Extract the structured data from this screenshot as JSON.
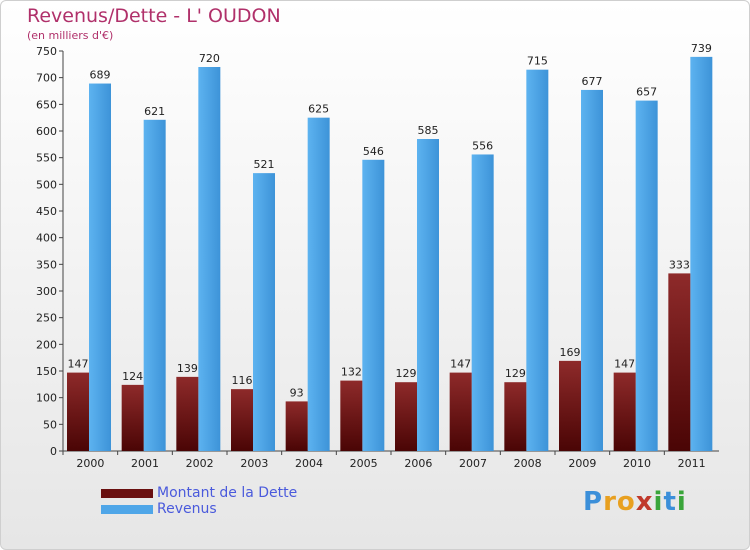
{
  "chart_data": {
    "type": "bar",
    "title": "Revenus/Dette - L' OUDON",
    "subtitle": "(en milliers d'€)",
    "categories": [
      "2000",
      "2001",
      "2002",
      "2003",
      "2004",
      "2005",
      "2006",
      "2007",
      "2008",
      "2009",
      "2010",
      "2011"
    ],
    "series": [
      {
        "name": "Montant de la Dette",
        "values": [
          147,
          124,
          139,
          116,
          93,
          132,
          129,
          147,
          129,
          169,
          147,
          333
        ],
        "color": "#7a1c1c"
      },
      {
        "name": "Revenus",
        "values": [
          689,
          621,
          720,
          521,
          625,
          546,
          585,
          556,
          715,
          677,
          657,
          739
        ],
        "color": "#4fa6e8"
      }
    ],
    "ylim": [
      0,
      750
    ],
    "yticks": [
      0,
      50,
      100,
      150,
      200,
      250,
      300,
      350,
      400,
      450,
      500,
      550,
      600,
      650,
      700,
      750
    ],
    "grid": false,
    "legend_position": "bottom-left"
  },
  "brand": {
    "letters": [
      "P",
      "r",
      "o",
      "x",
      "i",
      "t",
      "i"
    ],
    "colors": [
      "#3b8fd9",
      "#e8a020",
      "#e8a020",
      "#c0392b",
      "#3aa53a",
      "#3b8fd9",
      "#3aa53a"
    ]
  }
}
